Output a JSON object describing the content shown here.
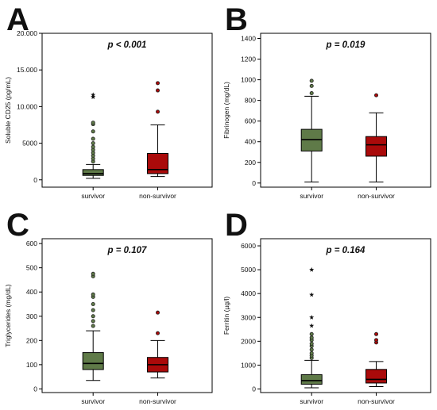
{
  "colors": {
    "survivor": "#5f7a48",
    "non_survivor": "#aa0a0a",
    "axis": "#000000"
  },
  "chart_data": [
    {
      "type": "box",
      "letter": "A",
      "annotation": "p < 0.001",
      "ylabel": "Soluble CD25 (pg/mL)",
      "ylim": [
        -1000,
        20000
      ],
      "yticks": [
        0,
        5000,
        10000,
        15000,
        20000
      ],
      "ytick_labels": [
        "0",
        "5000",
        "10.000",
        "15.000",
        "20.000"
      ],
      "categories": [
        "survivor",
        "non-survivor"
      ],
      "boxes": [
        {
          "category": "survivor",
          "whisker_low": 200,
          "q1": 600,
          "median": 850,
          "q3": 1400,
          "whisker_high": 2100,
          "outliers": [
            2500,
            2900,
            3300,
            3700,
            4100,
            4500,
            5000,
            5600,
            6600,
            7600,
            7800
          ],
          "extremes": [
            11300,
            11600
          ]
        },
        {
          "category": "non-survivor",
          "whisker_low": 450,
          "q1": 850,
          "median": 1400,
          "q3": 3600,
          "whisker_high": 7500,
          "outliers": [
            9300,
            12200,
            13200
          ],
          "extremes": []
        }
      ]
    },
    {
      "type": "box",
      "letter": "B",
      "annotation": "p = 0.019",
      "ylabel": "Fibrinogen (mg/dL)",
      "ylim": [
        -40,
        1450
      ],
      "yticks": [
        0,
        200,
        400,
        600,
        800,
        1000,
        1200,
        1400
      ],
      "ytick_labels": [
        "0",
        "200",
        "400",
        "600",
        "800",
        "1000",
        "1200",
        "1400"
      ],
      "categories": [
        "survivor",
        "non-survivor"
      ],
      "boxes": [
        {
          "category": "survivor",
          "whisker_low": 10,
          "q1": 310,
          "median": 420,
          "q3": 520,
          "whisker_high": 840,
          "outliers": [
            870,
            940,
            990
          ],
          "extremes": []
        },
        {
          "category": "non-survivor",
          "whisker_low": 10,
          "q1": 260,
          "median": 370,
          "q3": 450,
          "whisker_high": 680,
          "outliers": [
            850
          ],
          "extremes": []
        }
      ]
    },
    {
      "type": "box",
      "letter": "C",
      "annotation": "p = 0.107",
      "ylabel": "Triglycerides (mg/dL)",
      "ylim": [
        -15,
        620
      ],
      "yticks": [
        0,
        100,
        200,
        300,
        400,
        500,
        600
      ],
      "ytick_labels": [
        "0",
        "100",
        "200",
        "300",
        "400",
        "500",
        "600"
      ],
      "categories": [
        "survivor",
        "non-survivor"
      ],
      "boxes": [
        {
          "category": "survivor",
          "whisker_low": 35,
          "q1": 80,
          "median": 105,
          "q3": 150,
          "whisker_high": 240,
          "outliers": [
            260,
            280,
            300,
            325,
            350,
            380,
            390,
            465,
            475
          ],
          "extremes": []
        },
        {
          "category": "non-survivor",
          "whisker_low": 45,
          "q1": 70,
          "median": 100,
          "q3": 130,
          "whisker_high": 200,
          "outliers": [
            230,
            315
          ],
          "extremes": []
        }
      ]
    },
    {
      "type": "box",
      "letter": "D",
      "annotation": "p = 0.164",
      "ylabel": "Ferritin (µg/l)",
      "ylim": [
        -150,
        6300
      ],
      "yticks": [
        0,
        1000,
        2000,
        3000,
        4000,
        5000,
        6000
      ],
      "ytick_labels": [
        "0",
        "1000",
        "2000",
        "3000",
        "4000",
        "5000",
        "6000"
      ],
      "categories": [
        "survivor",
        "non-survivor"
      ],
      "boxes": [
        {
          "category": "survivor",
          "whisker_low": 50,
          "q1": 200,
          "median": 350,
          "q3": 600,
          "whisker_high": 1200,
          "outliers": [
            1300,
            1400,
            1500,
            1650,
            1800,
            1900,
            2050,
            2150,
            2300
          ],
          "extremes": [
            2650,
            3000,
            3950,
            5000
          ]
        },
        {
          "category": "non-survivor",
          "whisker_low": 100,
          "q1": 250,
          "median": 400,
          "q3": 820,
          "whisker_high": 1150,
          "outliers": [
            1950,
            2050,
            2300
          ],
          "extremes": []
        }
      ]
    }
  ]
}
